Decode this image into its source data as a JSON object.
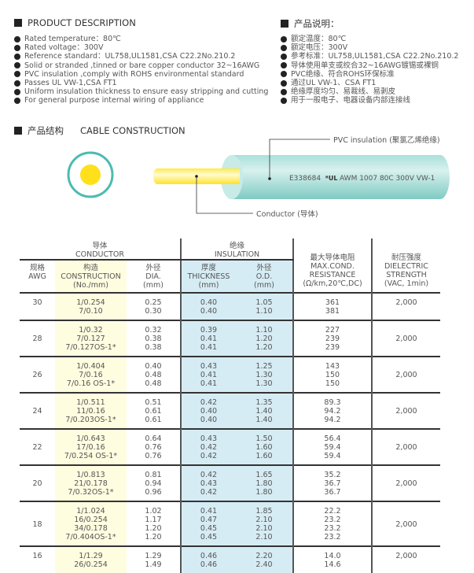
{
  "desc_en": {
    "title": "PRODUCT DESCRIPTION",
    "items": [
      "Rated temperature：80℃",
      "Rated voltage：300V",
      "Reference standard：UL758,UL1581,CSA C22.2No.210.2",
      "Solid or stranded ,tinned or bare copper conductor 32~16AWG",
      "PVC insulation ,comply with ROHS environmental standard",
      "Passes UL VW-1,CSA FT1",
      "Uniform insulation thickness to ensure easy stripping and cutting",
      "For general purpose internal wiring of appliance"
    ]
  },
  "desc_cn": {
    "title": "产品说明：",
    "items": [
      "额定温度：80℃",
      "额定电压：300V",
      "参考标准：UL758,UL1581,CSA C22.2No.210.2",
      "导体使用单支或绞合32~16AWG镀锡或裸铜",
      "PVC绝缘、符合ROHS环保标准",
      "通过UL VW-1、CSA FT1",
      "绝缘厚度均匀、易裁线、易剥皮",
      "用于一般电子、电器设备内部连接线"
    ]
  },
  "construction": {
    "title_cn": "产品结构",
    "title_en": "CABLE CONSTRUCTION",
    "insulation_label": "PVC insulation (聚氯乙烯绝缘)",
    "conductor_label": "Conductor (导体)",
    "marking_code": "E338684",
    "marking_text": "AWM 1007 80C 300V VW-1",
    "ul_logo": "UL",
    "colors": {
      "insulation": "#8fd3cc",
      "conductor": "#ffe21a"
    }
  },
  "table": {
    "group_conductor": [
      "导体",
      "CONDUCTOR"
    ],
    "group_insulation": [
      "绝缘",
      "INSULATION"
    ],
    "headers": {
      "awg": [
        "规格",
        "AWG"
      ],
      "construction": [
        "构造",
        "CONSTRUCTION",
        "(No./mm)"
      ],
      "dia": [
        "外径",
        "DIA.",
        "(mm)"
      ],
      "thickness": [
        "厚度",
        "THICKNESS",
        "(mm)"
      ],
      "od": [
        "外径",
        "O.D.",
        "(mm)"
      ],
      "resistance": [
        "最大导体电阻",
        "MAX.COND.",
        "RESISTANCE",
        "(Ω/km,20℃,DC)"
      ],
      "dielectric": [
        "耐压强度",
        "DIELECTRIC",
        "STRENGTH",
        "(VAC, 1min)"
      ]
    },
    "groups": [
      {
        "awg": "30",
        "construction": [
          "1/0.254",
          "7/0.10"
        ],
        "dia": [
          "0.25",
          "0.30"
        ],
        "thickness": [
          "0.40",
          "0.40"
        ],
        "od": [
          "1.05",
          "1.10"
        ],
        "resistance": [
          "361",
          "381"
        ],
        "dielectric": "2,000"
      },
      {
        "awg": "28",
        "construction": [
          "1/0.32",
          "7/0.127",
          "7/0.127OS-1*"
        ],
        "dia": [
          "0.32",
          "0.38",
          "0.38"
        ],
        "thickness": [
          "0.39",
          "0.41",
          "0.41"
        ],
        "od": [
          "1.10",
          "1.20",
          "1.20"
        ],
        "resistance": [
          "227",
          "239",
          "239"
        ],
        "dielectric": "2,000"
      },
      {
        "awg": "26",
        "construction": [
          "1/0.404",
          "7/0.16",
          "7/0.16 OS-1*"
        ],
        "dia": [
          "0.40",
          "0.48",
          "0.48"
        ],
        "thickness": [
          "0.43",
          "0.41",
          "0.41"
        ],
        "od": [
          "1.25",
          "1.30",
          "1.30"
        ],
        "resistance": [
          "143",
          "150",
          "150"
        ],
        "dielectric": "2,000"
      },
      {
        "awg": "24",
        "construction": [
          "1/0.511",
          "11/0.16",
          "7/0.203OS-1*"
        ],
        "dia": [
          "0.51",
          "0.61",
          "0.61"
        ],
        "thickness": [
          "0.42",
          "0.40",
          "0.40"
        ],
        "od": [
          "1.35",
          "1.40",
          "1.40"
        ],
        "resistance": [
          "89.3",
          "94.2",
          "94.2"
        ],
        "dielectric": "2,000"
      },
      {
        "awg": "22",
        "construction": [
          "1/0.643",
          "17/0.16",
          "7/0.254 OS-1*"
        ],
        "dia": [
          "0.64",
          "0.76",
          "0.76"
        ],
        "thickness": [
          "0.43",
          "0.42",
          "0.42"
        ],
        "od": [
          "1.50",
          "1.60",
          "1.60"
        ],
        "resistance": [
          "56.4",
          "59.4",
          "59.4"
        ],
        "dielectric": "2,000"
      },
      {
        "awg": "20",
        "construction": [
          "1/0.813",
          "21/0.178",
          "7/0.32OS-1*"
        ],
        "dia": [
          "0.81",
          "0.94",
          "0.96"
        ],
        "thickness": [
          "0.42",
          "0.43",
          "0.42"
        ],
        "od": [
          "1.65",
          "1.80",
          "1.80"
        ],
        "resistance": [
          "35.2",
          "36.7",
          "36.7"
        ],
        "dielectric": "2,000"
      },
      {
        "awg": "18",
        "construction": [
          "1/1.024",
          "16/0.254",
          "34/0.178",
          "7/0.404OS-1*"
        ],
        "dia": [
          "1.02",
          "1.17",
          "1.20",
          "1.20"
        ],
        "thickness": [
          "0.41",
          "0.47",
          "0.45",
          "0.45"
        ],
        "od": [
          "1.85",
          "2.10",
          "2.10",
          "2.10"
        ],
        "resistance": [
          "22.2",
          "23.2",
          "23.2",
          "23.2"
        ],
        "dielectric": "2,000"
      },
      {
        "awg": "16",
        "construction": [
          "1/1.29",
          "26/0.254"
        ],
        "dia": [
          "1.29",
          "1.49"
        ],
        "thickness": [
          "0.46",
          "0.46"
        ],
        "od": [
          "2.20",
          "2.40"
        ],
        "resistance": [
          "14.0",
          "14.6"
        ],
        "dielectric": "2,000"
      }
    ]
  }
}
